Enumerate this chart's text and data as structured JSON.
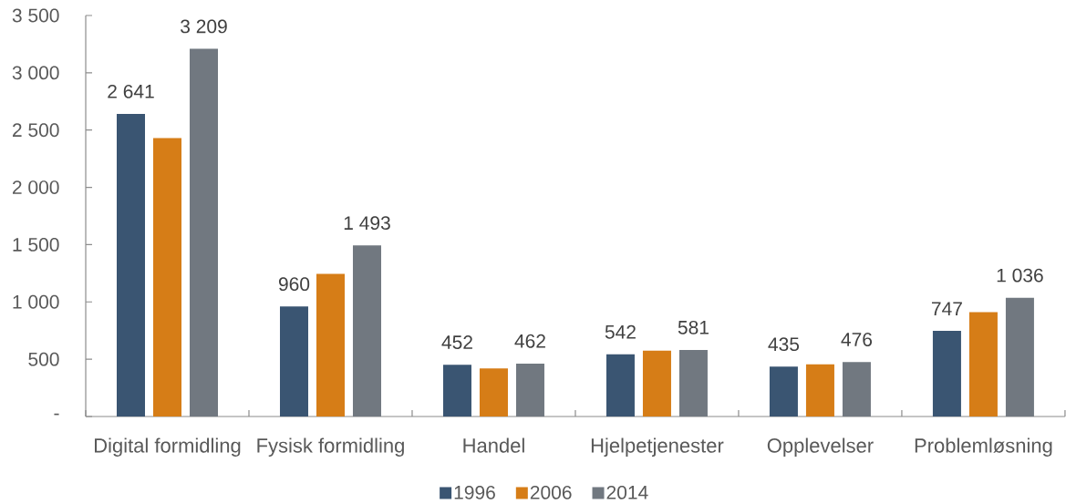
{
  "chart_data": {
    "type": "bar",
    "categories": [
      "Digital formidling",
      "Fysisk formidling",
      "Handel",
      "Hjelpetjenester",
      "Opplevelser",
      "Problemløsning"
    ],
    "series": [
      {
        "name": "1996",
        "color": "#3a5572",
        "values": [
          2641,
          960,
          452,
          542,
          435,
          747
        ],
        "value_labels": [
          "2 641",
          "960",
          "452",
          "542",
          "435",
          "747"
        ]
      },
      {
        "name": "2006",
        "color": "#d67d17",
        "values": [
          2430,
          1245,
          420,
          575,
          455,
          910
        ]
      },
      {
        "name": "2014",
        "color": "#717880",
        "values": [
          3209,
          1493,
          462,
          581,
          476,
          1036
        ],
        "value_labels": [
          "3 209",
          "1 493",
          "462",
          "581",
          "476",
          "1 036"
        ]
      }
    ],
    "ylim": [
      0,
      3500
    ],
    "yticks": [
      {
        "value": 0,
        "label": "-"
      },
      500,
      {
        "value": 1000,
        "label": "1 000"
      },
      {
        "value": 1500,
        "label": "1 500"
      },
      {
        "value": 2000,
        "label": "2 000"
      },
      {
        "value": 2500,
        "label": "2 500"
      },
      {
        "value": 3000,
        "label": "3 000"
      },
      {
        "value": 3500,
        "label": "3 500"
      }
    ],
    "grid": false,
    "legend": "bottom"
  }
}
